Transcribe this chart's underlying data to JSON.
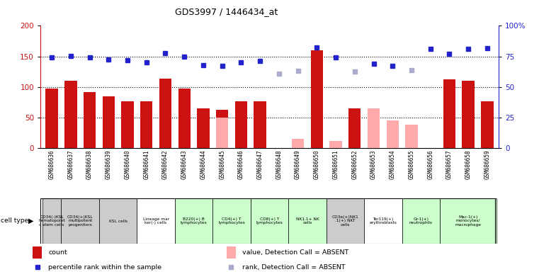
{
  "title": "GDS3997 / 1446434_at",
  "samples": [
    "GSM686636",
    "GSM686637",
    "GSM686638",
    "GSM686639",
    "GSM686640",
    "GSM686641",
    "GSM686642",
    "GSM686643",
    "GSM686644",
    "GSM686645",
    "GSM686646",
    "GSM686647",
    "GSM686648",
    "GSM686649",
    "GSM686650",
    "GSM686651",
    "GSM686652",
    "GSM686653",
    "GSM686654",
    "GSM686655",
    "GSM686656",
    "GSM686657",
    "GSM686658",
    "GSM686659"
  ],
  "count_values": [
    97,
    110,
    92,
    85,
    77,
    77,
    114,
    97,
    65,
    63,
    77,
    77,
    null,
    null,
    160,
    null,
    65,
    null,
    null,
    null,
    null,
    113,
    110,
    77
  ],
  "count_absent": [
    null,
    null,
    null,
    null,
    null,
    null,
    null,
    null,
    null,
    50,
    null,
    null,
    null,
    15,
    null,
    12,
    null,
    65,
    45,
    38,
    null,
    null,
    null,
    null
  ],
  "rank_values": [
    148,
    151,
    148,
    145,
    144,
    140,
    155,
    150,
    136,
    135,
    140,
    143,
    null,
    null,
    165,
    148,
    null,
    138,
    135,
    null,
    162,
    154,
    162,
    163
  ],
  "rank_absent": [
    null,
    null,
    null,
    null,
    null,
    null,
    null,
    null,
    null,
    null,
    null,
    null,
    122,
    126,
    null,
    null,
    125,
    null,
    null,
    128,
    null,
    null,
    null,
    null
  ],
  "cell_type_groups": [
    {
      "label": "CD34(-)KSL\nhematopoiet\nc stem cells",
      "start": 0,
      "end": 0,
      "color": "#cccccc"
    },
    {
      "label": "CD34(+)KSL\nmultipotent\nprogenitors",
      "start": 1,
      "end": 2,
      "color": "#cccccc"
    },
    {
      "label": "KSL cells",
      "start": 3,
      "end": 4,
      "color": "#cccccc"
    },
    {
      "label": "Lineage mar\nker(-) cells",
      "start": 5,
      "end": 6,
      "color": "#ffffff"
    },
    {
      "label": "B220(+) B\nlymphocytes",
      "start": 7,
      "end": 8,
      "color": "#ccffcc"
    },
    {
      "label": "CD4(+) T\nlymphocytes",
      "start": 9,
      "end": 10,
      "color": "#ccffcc"
    },
    {
      "label": "CD8(+) T\nlymphocytes",
      "start": 11,
      "end": 12,
      "color": "#ccffcc"
    },
    {
      "label": "NK1.1+ NK\ncells",
      "start": 13,
      "end": 14,
      "color": "#ccffcc"
    },
    {
      "label": "CD3e(+)NK1\n.1(+) NKT\ncells",
      "start": 15,
      "end": 16,
      "color": "#cccccc"
    },
    {
      "label": "Ter119(+)\nerythroblasts",
      "start": 17,
      "end": 18,
      "color": "#ffffff"
    },
    {
      "label": "Gr-1(+)\nneutrophils",
      "start": 19,
      "end": 20,
      "color": "#ccffcc"
    },
    {
      "label": "Mac-1(+)\nmonocytes/\nmacrophage",
      "start": 21,
      "end": 23,
      "color": "#ccffcc"
    }
  ],
  "ylim": [
    0,
    200
  ],
  "yticks_left": [
    0,
    50,
    100,
    150,
    200
  ],
  "yticks_right_labels": [
    "0",
    "25",
    "50",
    "75",
    "100%"
  ],
  "bar_color_red": "#cc1111",
  "bar_color_pink": "#ffaaaa",
  "dot_color_blue": "#2222cc",
  "dot_color_lightblue": "#aaaacc",
  "background_color": "#ffffff",
  "grid_color": "black"
}
